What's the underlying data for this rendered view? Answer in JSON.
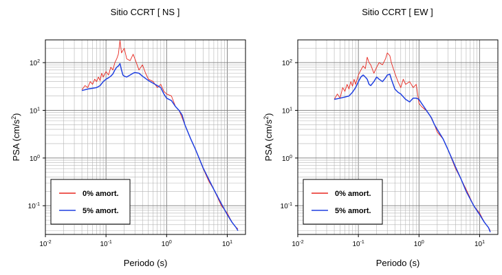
{
  "chart_data": [
    {
      "type": "line",
      "title": "Sitio CCRT [ NS ]",
      "xlabel": "Periodo (s)",
      "ylabel": "PSA (cm/s²)",
      "xscale": "log",
      "yscale": "log",
      "xlim": [
        0.01,
        20
      ],
      "ylim": [
        0.025,
        300
      ],
      "xticks": [
        0.01,
        0.1,
        1,
        10
      ],
      "xtick_labels": [
        [
          "10",
          "-2"
        ],
        [
          "10",
          "-1"
        ],
        [
          "10",
          "0"
        ],
        [
          "10",
          "1"
        ]
      ],
      "yticks": [
        0.1,
        1,
        10,
        100
      ],
      "ytick_labels": [
        [
          "10",
          "-1"
        ],
        [
          "10",
          "0"
        ],
        [
          "10",
          "1"
        ],
        [
          "10",
          "2"
        ]
      ],
      "grid": true,
      "legend_position": "bottom-left",
      "series": [
        {
          "name": "0% amort.",
          "color": "#e8261e",
          "points": [
            [
              0.04,
              27
            ],
            [
              0.045,
              33
            ],
            [
              0.05,
              30
            ],
            [
              0.055,
              40
            ],
            [
              0.06,
              35
            ],
            [
              0.065,
              45
            ],
            [
              0.07,
              40
            ],
            [
              0.075,
              50
            ],
            [
              0.08,
              42
            ],
            [
              0.085,
              60
            ],
            [
              0.09,
              50
            ],
            [
              0.1,
              65
            ],
            [
              0.11,
              55
            ],
            [
              0.12,
              80
            ],
            [
              0.13,
              70
            ],
            [
              0.14,
              100
            ],
            [
              0.15,
              120
            ],
            [
              0.16,
              150
            ],
            [
              0.17,
              290
            ],
            [
              0.18,
              160
            ],
            [
              0.2,
              200
            ],
            [
              0.22,
              120
            ],
            [
              0.25,
              110
            ],
            [
              0.28,
              150
            ],
            [
              0.3,
              120
            ],
            [
              0.35,
              70
            ],
            [
              0.4,
              90
            ],
            [
              0.45,
              60
            ],
            [
              0.5,
              45
            ],
            [
              0.6,
              40
            ],
            [
              0.7,
              30
            ],
            [
              0.8,
              35
            ],
            [
              0.9,
              25
            ],
            [
              1.0,
              22
            ],
            [
              1.2,
              20
            ],
            [
              1.4,
              12
            ],
            [
              1.6,
              10
            ],
            [
              1.8,
              7
            ],
            [
              2.0,
              5
            ],
            [
              2.5,
              2.5
            ],
            [
              3,
              1.5
            ],
            [
              4,
              0.6
            ],
            [
              5,
              0.32
            ],
            [
              6,
              0.22
            ],
            [
              8,
              0.1
            ],
            [
              10,
              0.07
            ],
            [
              12,
              0.045
            ],
            [
              14,
              0.035
            ],
            [
              15,
              0.033
            ]
          ]
        },
        {
          "name": "5% amort.",
          "color": "#1f3fe0",
          "points": [
            [
              0.04,
              26
            ],
            [
              0.05,
              28
            ],
            [
              0.06,
              29
            ],
            [
              0.07,
              30
            ],
            [
              0.08,
              33
            ],
            [
              0.09,
              40
            ],
            [
              0.1,
              45
            ],
            [
              0.11,
              48
            ],
            [
              0.12,
              52
            ],
            [
              0.13,
              58
            ],
            [
              0.14,
              70
            ],
            [
              0.15,
              80
            ],
            [
              0.16,
              85
            ],
            [
              0.17,
              95
            ],
            [
              0.18,
              70
            ],
            [
              0.19,
              55
            ],
            [
              0.2,
              52
            ],
            [
              0.22,
              50
            ],
            [
              0.25,
              55
            ],
            [
              0.28,
              60
            ],
            [
              0.3,
              62
            ],
            [
              0.35,
              60
            ],
            [
              0.4,
              52
            ],
            [
              0.5,
              42
            ],
            [
              0.6,
              37
            ],
            [
              0.7,
              33
            ],
            [
              0.8,
              30
            ],
            [
              0.9,
              22
            ],
            [
              1.0,
              18
            ],
            [
              1.2,
              16
            ],
            [
              1.4,
              12
            ],
            [
              1.6,
              10
            ],
            [
              1.8,
              8
            ],
            [
              2.0,
              5
            ],
            [
              2.5,
              2.5
            ],
            [
              3,
              1.5
            ],
            [
              4,
              0.62
            ],
            [
              5,
              0.35
            ],
            [
              6,
              0.22
            ],
            [
              8,
              0.11
            ],
            [
              10,
              0.065
            ],
            [
              12,
              0.045
            ],
            [
              14,
              0.035
            ],
            [
              15,
              0.03
            ]
          ]
        }
      ]
    },
    {
      "type": "line",
      "title": "Sitio CCRT [ EW ]",
      "xlabel": "Periodo (s)",
      "ylabel": "PSA (cm/s²)",
      "xscale": "log",
      "yscale": "log",
      "xlim": [
        0.01,
        20
      ],
      "ylim": [
        0.025,
        300
      ],
      "xticks": [
        0.01,
        0.1,
        1,
        10
      ],
      "xtick_labels": [
        [
          "10",
          "-2"
        ],
        [
          "10",
          "-1"
        ],
        [
          "10",
          "0"
        ],
        [
          "10",
          "1"
        ]
      ],
      "yticks": [
        0.1,
        1,
        10,
        100
      ],
      "ytick_labels": [
        [
          "10",
          "-1"
        ],
        [
          "10",
          "0"
        ],
        [
          "10",
          "1"
        ],
        [
          "10",
          "2"
        ]
      ],
      "grid": true,
      "legend_position": "bottom-left",
      "series": [
        {
          "name": "0% amort.",
          "color": "#e8261e",
          "points": [
            [
              0.04,
              17
            ],
            [
              0.045,
              22
            ],
            [
              0.05,
              18
            ],
            [
              0.055,
              30
            ],
            [
              0.06,
              25
            ],
            [
              0.065,
              35
            ],
            [
              0.07,
              28
            ],
            [
              0.075,
              40
            ],
            [
              0.08,
              32
            ],
            [
              0.085,
              45
            ],
            [
              0.09,
              35
            ],
            [
              0.1,
              55
            ],
            [
              0.11,
              70
            ],
            [
              0.12,
              85
            ],
            [
              0.13,
              75
            ],
            [
              0.14,
              130
            ],
            [
              0.15,
              100
            ],
            [
              0.16,
              90
            ],
            [
              0.18,
              60
            ],
            [
              0.2,
              80
            ],
            [
              0.22,
              100
            ],
            [
              0.25,
              90
            ],
            [
              0.28,
              120
            ],
            [
              0.3,
              160
            ],
            [
              0.33,
              140
            ],
            [
              0.35,
              100
            ],
            [
              0.4,
              60
            ],
            [
              0.45,
              40
            ],
            [
              0.5,
              30
            ],
            [
              0.55,
              45
            ],
            [
              0.6,
              35
            ],
            [
              0.7,
              40
            ],
            [
              0.8,
              30
            ],
            [
              0.9,
              35
            ],
            [
              1.0,
              14
            ],
            [
              1.1,
              12
            ],
            [
              1.3,
              10
            ],
            [
              1.5,
              8
            ],
            [
              1.8,
              5
            ],
            [
              2,
              3.5
            ],
            [
              2.5,
              2.5
            ],
            [
              3,
              1.5
            ],
            [
              4,
              0.6
            ],
            [
              5,
              0.35
            ],
            [
              6,
              0.22
            ],
            [
              8,
              0.1
            ],
            [
              10,
              0.07
            ],
            [
              12,
              0.045
            ],
            [
              14,
              0.035
            ],
            [
              15,
              0.03
            ]
          ]
        },
        {
          "name": "5% amort.",
          "color": "#1f3fe0",
          "points": [
            [
              0.04,
              17
            ],
            [
              0.05,
              18
            ],
            [
              0.06,
              19
            ],
            [
              0.07,
              20
            ],
            [
              0.08,
              24
            ],
            [
              0.09,
              30
            ],
            [
              0.1,
              40
            ],
            [
              0.11,
              50
            ],
            [
              0.12,
              55
            ],
            [
              0.13,
              50
            ],
            [
              0.14,
              45
            ],
            [
              0.15,
              35
            ],
            [
              0.16,
              33
            ],
            [
              0.18,
              40
            ],
            [
              0.2,
              50
            ],
            [
              0.22,
              45
            ],
            [
              0.25,
              40
            ],
            [
              0.28,
              48
            ],
            [
              0.3,
              55
            ],
            [
              0.33,
              57
            ],
            [
              0.35,
              45
            ],
            [
              0.4,
              28
            ],
            [
              0.45,
              24
            ],
            [
              0.5,
              22
            ],
            [
              0.6,
              17
            ],
            [
              0.7,
              15
            ],
            [
              0.8,
              18
            ],
            [
              0.9,
              18
            ],
            [
              1.0,
              17
            ],
            [
              1.1,
              14
            ],
            [
              1.2,
              12
            ],
            [
              1.4,
              9
            ],
            [
              1.6,
              7
            ],
            [
              1.8,
              5
            ],
            [
              2,
              4
            ],
            [
              2.5,
              2.5
            ],
            [
              3,
              1.5
            ],
            [
              4,
              0.65
            ],
            [
              5,
              0.35
            ],
            [
              6,
              0.2
            ],
            [
              8,
              0.1
            ],
            [
              10,
              0.065
            ],
            [
              12,
              0.045
            ],
            [
              14,
              0.035
            ],
            [
              15,
              0.028
            ]
          ]
        }
      ]
    }
  ]
}
